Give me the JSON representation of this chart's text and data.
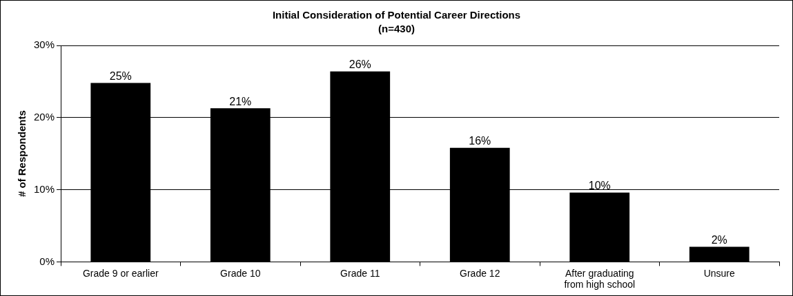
{
  "chart_data": {
    "type": "bar",
    "title": "Initial Consideration of Potential Career Directions",
    "subtitle": "(n=430)",
    "ylabel": "# of Respondents",
    "categories": [
      "Grade 9 or earlier",
      "Grade 10",
      "Grade 11",
      "Grade 12",
      "After graduating from high school",
      "Unsure"
    ],
    "values": [
      24.8,
      21.3,
      26.4,
      15.8,
      9.6,
      2.1
    ],
    "value_labels": [
      "25%",
      "21%",
      "26%",
      "16%",
      "10%",
      "2%"
    ],
    "color": "#000000",
    "ylim": [
      0,
      30
    ],
    "yticks": [
      {
        "value": 0,
        "label": "0%"
      },
      {
        "value": 10,
        "label": "10%"
      },
      {
        "value": 20,
        "label": "20%"
      },
      {
        "value": 30,
        "label": "30%"
      }
    ],
    "grid": "y",
    "legend": false
  }
}
